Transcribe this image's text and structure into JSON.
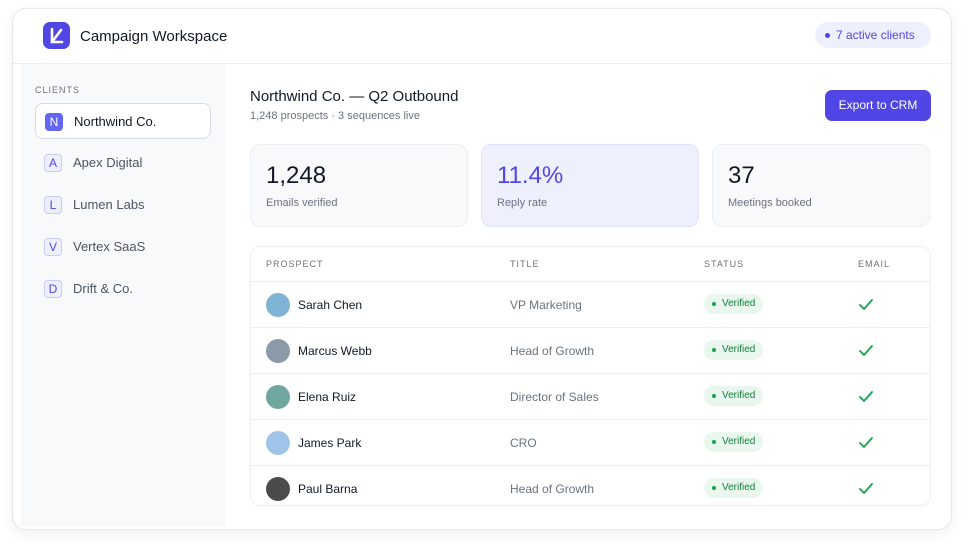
{
  "header": {
    "title": "Campaign Workspace",
    "badge": "7 active clients"
  },
  "sidebar": {
    "label": "CLIENTS",
    "clients": [
      {
        "initial": "N",
        "name": "Northwind Co."
      },
      {
        "initial": "A",
        "name": "Apex Digital"
      },
      {
        "initial": "L",
        "name": "Lumen Labs"
      },
      {
        "initial": "V",
        "name": "Vertex SaaS"
      },
      {
        "initial": "D",
        "name": "Drift & Co."
      }
    ]
  },
  "main": {
    "title": "Northwind Co. — Q2 Outbound",
    "subtitle": "1,248 prospects · 3 sequences live",
    "button": "Export to CRM"
  },
  "stats": [
    {
      "value": "1,248",
      "label": "Emails verified"
    },
    {
      "value": "11.4%",
      "label": "Reply rate"
    },
    {
      "value": "37",
      "label": "Meetings booked"
    }
  ],
  "table": {
    "columns": [
      "PROSPECT",
      "TITLE",
      "STATUS",
      "EMAIL"
    ],
    "rows": [
      [
        "Sarah Chen",
        "VP Marketing",
        "Verified"
      ],
      [
        "Marcus Webb",
        "Head of Growth",
        "Verified"
      ],
      [
        "Elena Ruiz",
        "Director of Sales",
        "Verified"
      ],
      [
        "James Park",
        "CRO",
        "Verified"
      ],
      [
        "Paul Barna",
        "Head of Growth",
        "Verified"
      ]
    ]
  }
}
